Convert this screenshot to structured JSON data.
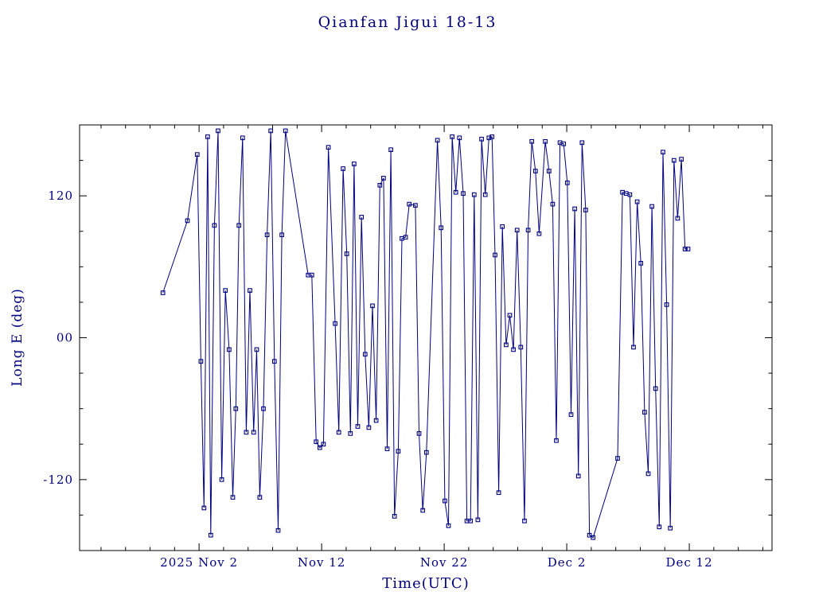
{
  "colors": {
    "accent": "#000080",
    "frame": "#000000",
    "background": "#ffffff"
  },
  "chart_data": {
    "type": "line",
    "title": "Qianfan Jigui 18-13",
    "xlabel": "Time(UTC)",
    "ylabel": "Long E (deg)",
    "marker": "open-square",
    "line_color": "#000080",
    "grid": "off",
    "legend": "none",
    "xlim_days": [
      0,
      56.5
    ],
    "x_epoch_note": "days measured from left plot edge (approx 2025 Oct 23)",
    "ylim": [
      -180,
      180
    ],
    "x_ticks": [
      {
        "day": 9.75,
        "label": "2025 Nov  2"
      },
      {
        "day": 19.75,
        "label": "Nov 12"
      },
      {
        "day": 29.75,
        "label": "Nov 22"
      },
      {
        "day": 39.75,
        "label": "Dec  2"
      },
      {
        "day": 49.75,
        "label": "Dec 12"
      }
    ],
    "y_ticks": [
      {
        "value": 120,
        "label": "120"
      },
      {
        "value": 0,
        "label": "00"
      },
      {
        "value": -120,
        "label": "-120"
      }
    ],
    "x_minor_step_days": 2,
    "y_minor_step": 30,
    "points": [
      [
        6.8,
        38
      ],
      [
        8.8,
        99
      ],
      [
        9.6,
        155
      ],
      [
        9.9,
        -20
      ],
      [
        10.15,
        -144
      ],
      [
        10.45,
        170
      ],
      [
        10.7,
        -167
      ],
      [
        11.0,
        95
      ],
      [
        11.3,
        175
      ],
      [
        11.6,
        -120
      ],
      [
        11.9,
        40
      ],
      [
        12.2,
        -10
      ],
      [
        12.5,
        -135
      ],
      [
        12.75,
        -60
      ],
      [
        13.0,
        95
      ],
      [
        13.3,
        169
      ],
      [
        13.6,
        -80
      ],
      [
        13.9,
        40
      ],
      [
        14.2,
        -80
      ],
      [
        14.45,
        -10
      ],
      [
        14.7,
        -135
      ],
      [
        15.0,
        -60
      ],
      [
        15.3,
        87
      ],
      [
        15.6,
        175
      ],
      [
        15.9,
        -20
      ],
      [
        16.2,
        -163
      ],
      [
        16.5,
        87
      ],
      [
        16.8,
        175
      ],
      [
        18.65,
        53
      ],
      [
        18.95,
        53
      ],
      [
        19.3,
        -88
      ],
      [
        19.6,
        -93
      ],
      [
        19.9,
        -90
      ],
      [
        20.3,
        161
      ],
      [
        20.85,
        12
      ],
      [
        21.15,
        -80
      ],
      [
        21.5,
        143
      ],
      [
        21.8,
        71
      ],
      [
        22.1,
        -81
      ],
      [
        22.4,
        147
      ],
      [
        22.7,
        -75
      ],
      [
        23.0,
        102
      ],
      [
        23.3,
        -14
      ],
      [
        23.6,
        -76
      ],
      [
        23.9,
        27
      ],
      [
        24.2,
        -70
      ],
      [
        24.5,
        129
      ],
      [
        24.8,
        135
      ],
      [
        25.1,
        -94
      ],
      [
        25.4,
        159
      ],
      [
        25.7,
        -151
      ],
      [
        26.0,
        -96
      ],
      [
        26.3,
        84
      ],
      [
        26.6,
        85
      ],
      [
        26.9,
        113
      ],
      [
        27.4,
        112
      ],
      [
        27.7,
        -81
      ],
      [
        28.0,
        -146
      ],
      [
        28.3,
        -97
      ],
      [
        29.2,
        167
      ],
      [
        29.5,
        93
      ],
      [
        29.8,
        -138
      ],
      [
        30.1,
        -159
      ],
      [
        30.4,
        170
      ],
      [
        30.7,
        123
      ],
      [
        31.0,
        169
      ],
      [
        31.3,
        122
      ],
      [
        31.6,
        -155
      ],
      [
        31.9,
        -155
      ],
      [
        32.2,
        121
      ],
      [
        32.5,
        -154
      ],
      [
        32.8,
        168
      ],
      [
        33.1,
        121
      ],
      [
        33.4,
        169
      ],
      [
        33.65,
        170
      ],
      [
        33.9,
        70
      ],
      [
        34.2,
        -131
      ],
      [
        34.5,
        94
      ],
      [
        34.8,
        -6
      ],
      [
        35.1,
        19
      ],
      [
        35.4,
        -10
      ],
      [
        35.7,
        91
      ],
      [
        36.0,
        -8
      ],
      [
        36.3,
        -155
      ],
      [
        36.6,
        91
      ],
      [
        36.9,
        166
      ],
      [
        37.2,
        141
      ],
      [
        37.5,
        88
      ],
      [
        38.0,
        166
      ],
      [
        38.3,
        141
      ],
      [
        38.6,
        113
      ],
      [
        38.9,
        -87
      ],
      [
        39.2,
        165
      ],
      [
        39.5,
        164
      ],
      [
        39.8,
        131
      ],
      [
        40.1,
        -65
      ],
      [
        40.4,
        109
      ],
      [
        40.7,
        -117
      ],
      [
        41.0,
        165
      ],
      [
        41.3,
        108
      ],
      [
        41.6,
        -167
      ],
      [
        41.9,
        -169
      ],
      [
        43.9,
        -102
      ],
      [
        44.3,
        123
      ],
      [
        44.6,
        122
      ],
      [
        44.9,
        121
      ],
      [
        45.2,
        -8
      ],
      [
        45.5,
        115
      ],
      [
        45.8,
        63
      ],
      [
        46.1,
        -63
      ],
      [
        46.4,
        -115
      ],
      [
        46.7,
        111
      ],
      [
        47.0,
        -43
      ],
      [
        47.3,
        -160
      ],
      [
        47.6,
        157
      ],
      [
        47.9,
        28
      ],
      [
        48.2,
        -161
      ],
      [
        48.5,
        150
      ],
      [
        48.8,
        101
      ],
      [
        49.1,
        151
      ],
      [
        49.4,
        75
      ],
      [
        49.65,
        75
      ]
    ]
  }
}
